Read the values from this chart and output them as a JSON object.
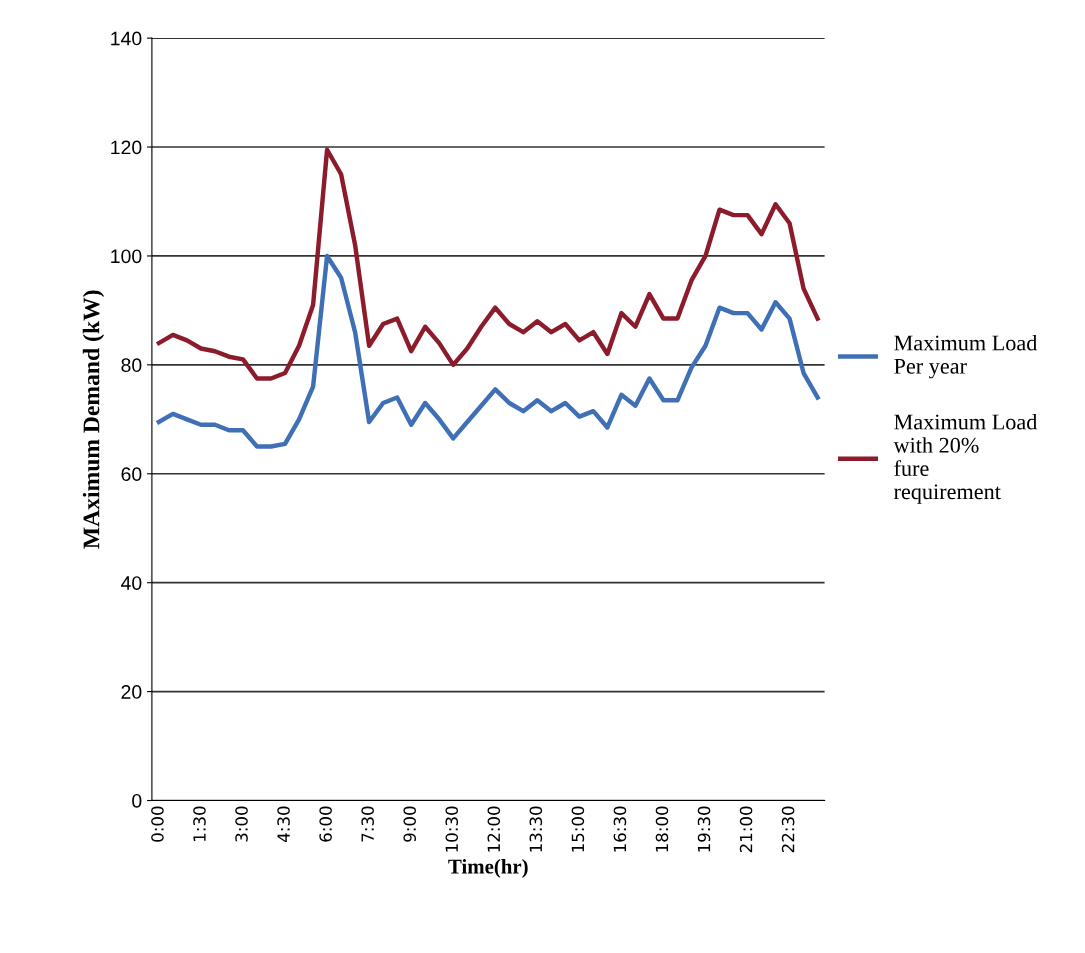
{
  "chart_data": {
    "type": "line",
    "xlabel": "Time(hr)",
    "ylabel": "MAximum Demand (kW)",
    "categories": [
      "0:00",
      null,
      null,
      "1:30",
      null,
      null,
      "3:00",
      null,
      null,
      "4:30",
      null,
      null,
      "6:00",
      null,
      null,
      "7:30",
      null,
      null,
      "9:00",
      null,
      null,
      "10:30",
      null,
      null,
      "12:00",
      null,
      null,
      "13:30",
      null,
      null,
      "15:00",
      null,
      null,
      "16:30",
      null,
      null,
      "18:00",
      null,
      null,
      "19:30",
      null,
      null,
      "21:00",
      null,
      null,
      "22:30",
      null,
      null
    ],
    "series": [
      {
        "name": "Maximum Load Per year",
        "color": "#3f6fb5",
        "values": [
          69.5,
          71,
          70,
          69,
          69,
          68,
          68,
          65,
          65,
          65.5,
          70,
          76,
          100,
          96,
          86,
          69.5,
          73,
          74,
          69,
          73,
          70,
          66.5,
          69.5,
          72.5,
          75.5,
          73,
          71.5,
          73.5,
          71.5,
          73,
          70.5,
          71.5,
          68.5,
          74.5,
          72.5,
          77.5,
          73.5,
          73.5,
          79.5,
          83.5,
          90.5,
          89.5,
          89.5,
          86.5,
          91.5,
          88.5,
          78.5,
          74
        ]
      },
      {
        "name": "Maximum Load with 20% fure requirement",
        "color": "#8c1c2c",
        "values": [
          84,
          85.5,
          84.5,
          83,
          82.5,
          81.5,
          81,
          77.5,
          77.5,
          78.5,
          83.5,
          91,
          119.5,
          115,
          102,
          83.5,
          87.5,
          88.5,
          82.5,
          87,
          84,
          80,
          83,
          87,
          90.5,
          87.5,
          86,
          88,
          86,
          87.5,
          84.5,
          86,
          82,
          89.5,
          87,
          93,
          88.5,
          88.5,
          95.5,
          100,
          108.5,
          107.5,
          107.5,
          104,
          109.5,
          106,
          94,
          88.5
        ]
      }
    ],
    "ylim": [
      0,
      140
    ],
    "yticks": [
      0,
      20,
      40,
      60,
      80,
      100,
      120,
      140
    ],
    "grid": "y",
    "legend": "right",
    "marker": "none",
    "line_style": "solid"
  }
}
